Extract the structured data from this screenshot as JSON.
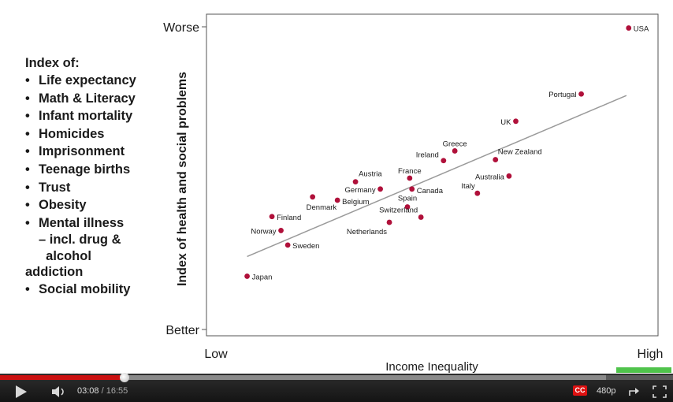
{
  "slide": {
    "index_heading": "Index of:",
    "index_items": [
      "Life expectancy",
      "Math & Literacy",
      "Infant mortality",
      "Homicides",
      "Imprisonment",
      "Teenage births",
      "Trust",
      "Obesity",
      "Mental illness"
    ],
    "mental_illness_sub": [
      "– incl. drug &",
      "  alcohol",
      "addiction"
    ],
    "last_item": "Social mobility"
  },
  "chart_data": {
    "type": "scatter",
    "title": "",
    "xlabel": "Income Inequality",
    "ylabel": "Index of health and social problems",
    "x_tick_labels": [
      "Low",
      "High"
    ],
    "y_tick_labels": [
      "Worse",
      "Better"
    ],
    "xlim": [
      0,
      100
    ],
    "ylim": [
      0,
      100
    ],
    "grid": false,
    "series": [
      {
        "points": [
          {
            "label": "USA",
            "x": 93.5,
            "y": 99.6
          },
          {
            "label": "Portugal",
            "x": 83,
            "y": 77.8
          },
          {
            "label": "UK",
            "x": 68.5,
            "y": 68.8
          },
          {
            "label": "Greece",
            "x": 55,
            "y": 59
          },
          {
            "label": "New Zealand",
            "x": 64,
            "y": 56.1
          },
          {
            "label": "Ireland",
            "x": 52.5,
            "y": 55.8
          },
          {
            "label": "France",
            "x": 45,
            "y": 50
          },
          {
            "label": "Australia",
            "x": 67,
            "y": 50.7
          },
          {
            "label": "Austria",
            "x": 33,
            "y": 48.8
          },
          {
            "label": "Germany",
            "x": 38.5,
            "y": 46.4
          },
          {
            "label": "Canada",
            "x": 45.5,
            "y": 46.4
          },
          {
            "label": "Italy",
            "x": 60,
            "y": 45
          },
          {
            "label": "Denmark",
            "x": 23.5,
            "y": 43.8
          },
          {
            "label": "Belgium",
            "x": 29,
            "y": 42.7
          },
          {
            "label": "Spain",
            "x": 44.5,
            "y": 40.5
          },
          {
            "label": "Switzerland",
            "x": 47.5,
            "y": 37.1
          },
          {
            "label": "Netherlands",
            "x": 40.5,
            "y": 35.4
          },
          {
            "label": "Finland",
            "x": 14.5,
            "y": 37.3
          },
          {
            "label": "Norway",
            "x": 16.5,
            "y": 32.7
          },
          {
            "label": "Sweden",
            "x": 18,
            "y": 27.9
          },
          {
            "label": "Japan",
            "x": 9,
            "y": 17.6
          }
        ]
      }
    ],
    "trendline": {
      "x": [
        9,
        93
      ],
      "y": [
        24.1,
        77.3
      ]
    }
  },
  "player": {
    "current_time": "03:08",
    "separator": "/",
    "duration": "16:55",
    "played_fraction": 0.185,
    "buffered_fraction": 0.9,
    "quality": "480p",
    "cc_label": "CC",
    "accent_color": "#cc1111"
  },
  "colors": {
    "point": "#b0103a",
    "trendline": "#9a9a9a",
    "axis": "#555555",
    "text": "#1a1a1a"
  }
}
